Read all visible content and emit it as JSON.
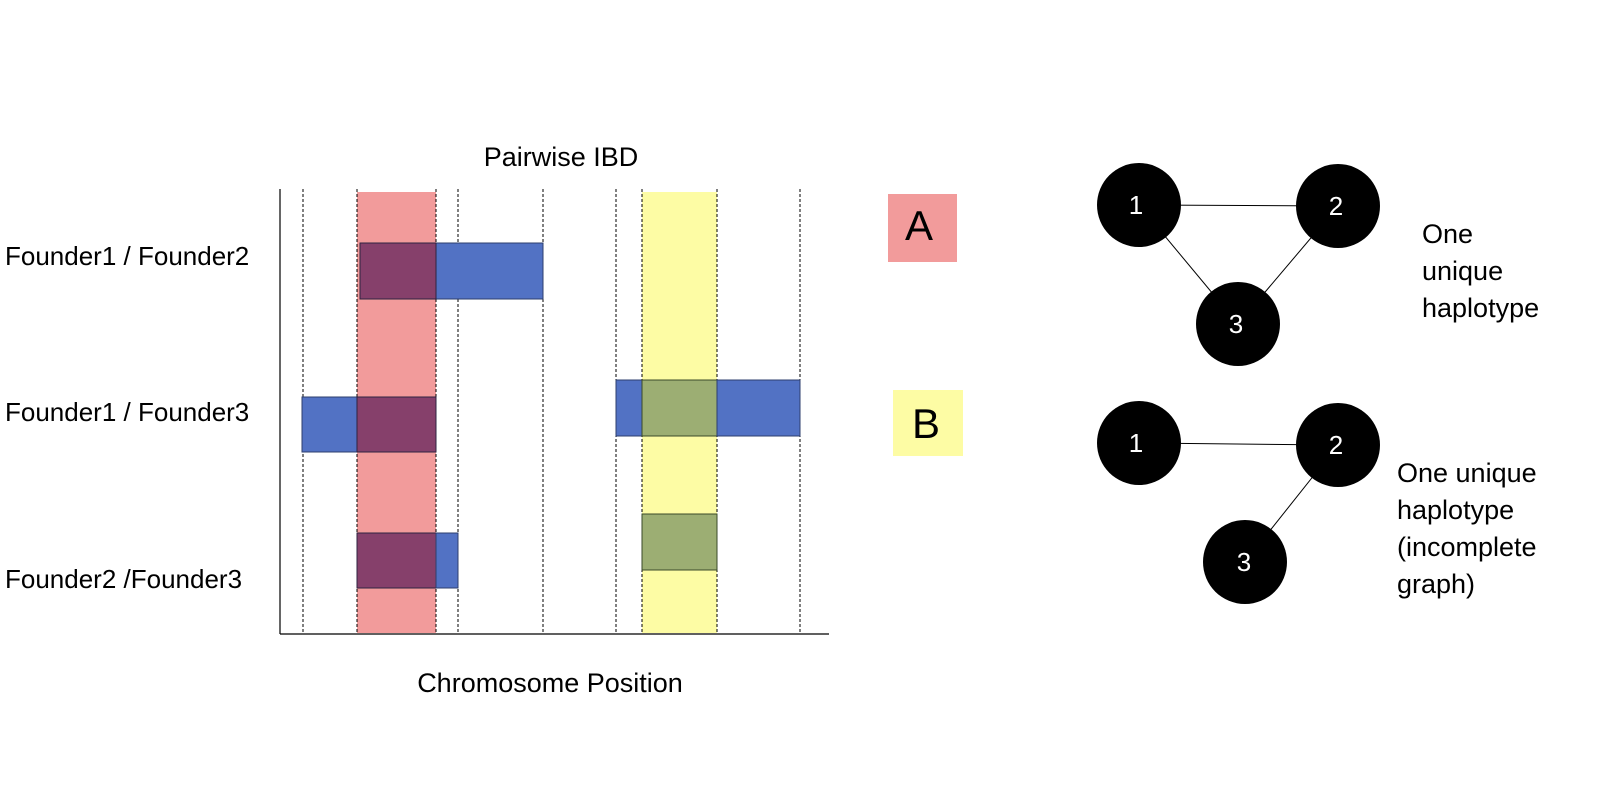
{
  "ibd_chart": {
    "title": "Pairwise IBD",
    "xlabel": "Chromosome Position",
    "rows": [
      {
        "label": "Founder1 / Founder2"
      },
      {
        "label": "Founder1 / Founder3"
      },
      {
        "label": "Founder2 /Founder3"
      }
    ],
    "colors": {
      "segment": "#5272c4",
      "region_a": "#f29b9b",
      "region_b": "#fdfca4",
      "overlap_a": "#86406b",
      "overlap_b": "#9cae73"
    }
  },
  "regions": {
    "a": {
      "label": "A"
    },
    "b": {
      "label": "B"
    }
  },
  "graphs": {
    "top": {
      "nodes": [
        "1",
        "2",
        "3"
      ],
      "caption_lines": [
        "One",
        "unique",
        "haplotype"
      ]
    },
    "bottom": {
      "nodes": [
        "1",
        "2",
        "3"
      ],
      "caption_lines": [
        "One unique",
        "haplotype",
        "(incomplete",
        "graph)"
      ]
    }
  }
}
